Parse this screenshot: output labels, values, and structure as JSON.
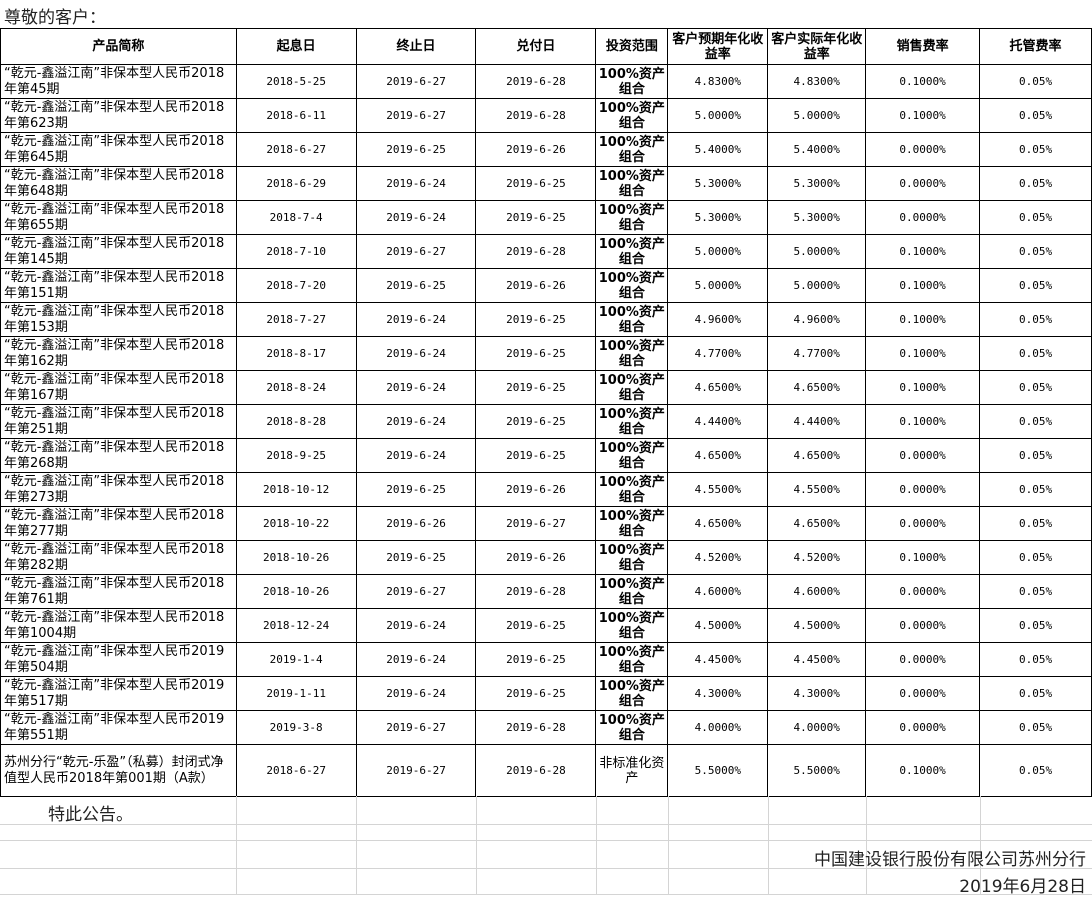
{
  "greeting": "尊敬的客户：",
  "headers": [
    "产品简称",
    "起息日",
    "终止日",
    "兑付日",
    "投资范围",
    "客户预期年化收益率",
    "客户实际年化收益率",
    "销售费率",
    "托管费率"
  ],
  "rows": [
    [
      "“乾元-鑫溢江南”非保本型人民币2018年第45期",
      "2018-5-25",
      "2019-6-27",
      "2019-6-28",
      "100%资产组合",
      "4.8300%",
      "4.8300%",
      "0.1000%",
      "0.05%"
    ],
    [
      "“乾元-鑫溢江南”非保本型人民币2018年第623期",
      "2018-6-11",
      "2019-6-27",
      "2019-6-28",
      "100%资产组合",
      "5.0000%",
      "5.0000%",
      "0.1000%",
      "0.05%"
    ],
    [
      "“乾元-鑫溢江南”非保本型人民币2018年第645期",
      "2018-6-27",
      "2019-6-25",
      "2019-6-26",
      "100%资产组合",
      "5.4000%",
      "5.4000%",
      "0.0000%",
      "0.05%"
    ],
    [
      "“乾元-鑫溢江南”非保本型人民币2018年第648期",
      "2018-6-29",
      "2019-6-24",
      "2019-6-25",
      "100%资产组合",
      "5.3000%",
      "5.3000%",
      "0.0000%",
      "0.05%"
    ],
    [
      "“乾元-鑫溢江南”非保本型人民币2018年第655期",
      "2018-7-4",
      "2019-6-24",
      "2019-6-25",
      "100%资产组合",
      "5.3000%",
      "5.3000%",
      "0.0000%",
      "0.05%"
    ],
    [
      "“乾元-鑫溢江南”非保本型人民币2018年第145期",
      "2018-7-10",
      "2019-6-27",
      "2019-6-28",
      "100%资产组合",
      "5.0000%",
      "5.0000%",
      "0.1000%",
      "0.05%"
    ],
    [
      "“乾元-鑫溢江南”非保本型人民币2018年第151期",
      "2018-7-20",
      "2019-6-25",
      "2019-6-26",
      "100%资产组合",
      "5.0000%",
      "5.0000%",
      "0.1000%",
      "0.05%"
    ],
    [
      "“乾元-鑫溢江南”非保本型人民币2018年第153期",
      "2018-7-27",
      "2019-6-24",
      "2019-6-25",
      "100%资产组合",
      "4.9600%",
      "4.9600%",
      "0.1000%",
      "0.05%"
    ],
    [
      "“乾元-鑫溢江南”非保本型人民币2018年第162期",
      "2018-8-17",
      "2019-6-24",
      "2019-6-25",
      "100%资产组合",
      "4.7700%",
      "4.7700%",
      "0.1000%",
      "0.05%"
    ],
    [
      "“乾元-鑫溢江南”非保本型人民币2018年第167期",
      "2018-8-24",
      "2019-6-24",
      "2019-6-25",
      "100%资产组合",
      "4.6500%",
      "4.6500%",
      "0.1000%",
      "0.05%"
    ],
    [
      "“乾元-鑫溢江南”非保本型人民币2018年第251期",
      "2018-8-28",
      "2019-6-24",
      "2019-6-25",
      "100%资产组合",
      "4.4400%",
      "4.4400%",
      "0.1000%",
      "0.05%"
    ],
    [
      "“乾元-鑫溢江南”非保本型人民币2018年第268期",
      "2018-9-25",
      "2019-6-24",
      "2019-6-25",
      "100%资产组合",
      "4.6500%",
      "4.6500%",
      "0.0000%",
      "0.05%"
    ],
    [
      "“乾元-鑫溢江南”非保本型人民币2018年第273期",
      "2018-10-12",
      "2019-6-25",
      "2019-6-26",
      "100%资产组合",
      "4.5500%",
      "4.5500%",
      "0.0000%",
      "0.05%"
    ],
    [
      "“乾元-鑫溢江南”非保本型人民币2018年第277期",
      "2018-10-22",
      "2019-6-26",
      "2019-6-27",
      "100%资产组合",
      "4.6500%",
      "4.6500%",
      "0.0000%",
      "0.05%"
    ],
    [
      "“乾元-鑫溢江南”非保本型人民币2018年第282期",
      "2018-10-26",
      "2019-6-25",
      "2019-6-26",
      "100%资产组合",
      "4.5200%",
      "4.5200%",
      "0.1000%",
      "0.05%"
    ],
    [
      "“乾元-鑫溢江南”非保本型人民币2018年第761期",
      "2018-10-26",
      "2019-6-27",
      "2019-6-28",
      "100%资产组合",
      "4.6000%",
      "4.6000%",
      "0.0000%",
      "0.05%"
    ],
    [
      "“乾元-鑫溢江南”非保本型人民币2018年第1004期",
      "2018-12-24",
      "2019-6-24",
      "2019-6-25",
      "100%资产组合",
      "4.5000%",
      "4.5000%",
      "0.0000%",
      "0.05%"
    ],
    [
      "“乾元-鑫溢江南”非保本型人民币2019年第504期",
      "2019-1-4",
      "2019-6-24",
      "2019-6-25",
      "100%资产组合",
      "4.4500%",
      "4.4500%",
      "0.0000%",
      "0.05%"
    ],
    [
      "“乾元-鑫溢江南”非保本型人民币2019年第517期",
      "2019-1-11",
      "2019-6-24",
      "2019-6-25",
      "100%资产组合",
      "4.3000%",
      "4.3000%",
      "0.0000%",
      "0.05%"
    ],
    [
      "“乾元-鑫溢江南”非保本型人民币2019年第551期",
      "2019-3-8",
      "2019-6-27",
      "2019-6-28",
      "100%资产组合",
      "4.0000%",
      "4.0000%",
      "0.0000%",
      "0.05%"
    ],
    [
      "苏州分行“乾元-乐盈”（私募）封闭式净值型人民币2018年第001期（A款）",
      "2018-6-27",
      "2019-6-27",
      "2019-6-28",
      "非标准化资产",
      "5.5000%",
      "5.5000%",
      "0.1000%",
      "0.05%"
    ]
  ],
  "notice": "特此公告。",
  "signature": "中国建设银行股份有限公司苏州分行",
  "date": "2019年6月28日"
}
